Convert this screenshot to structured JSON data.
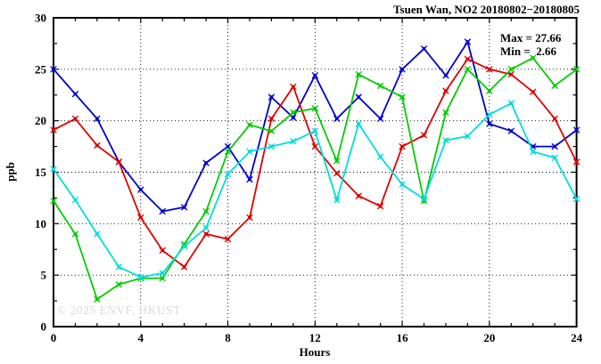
{
  "chart_data": {
    "type": "line",
    "title": "Tsuen Wan, NO2 20180802−20180805",
    "xlabel": "Hours",
    "ylabel": "ppb",
    "xlim": [
      0,
      24
    ],
    "ylim": [
      0,
      30
    ],
    "x_ticks": [
      0,
      4,
      8,
      12,
      16,
      20,
      24
    ],
    "y_ticks": [
      0,
      5,
      10,
      15,
      20,
      25,
      30
    ],
    "grid": true,
    "legend": "none",
    "x": [
      0,
      1,
      2,
      3,
      4,
      5,
      6,
      7,
      8,
      9,
      10,
      11,
      12,
      13,
      14,
      15,
      16,
      17,
      18,
      19,
      20,
      21,
      22,
      23,
      24
    ],
    "series": [
      {
        "name": "series-blue",
        "color": "#0000cc",
        "values": [
          25.0,
          22.6,
          20.2,
          16.0,
          13.3,
          11.2,
          11.6,
          15.9,
          17.5,
          14.3,
          22.3,
          20.3,
          24.4,
          20.2,
          22.3,
          20.2,
          25.0,
          27.0,
          24.4,
          27.66,
          19.7,
          19.0,
          17.5,
          17.5,
          19.1
        ]
      },
      {
        "name": "series-red",
        "color": "#dd0000",
        "values": [
          19.1,
          20.2,
          17.6,
          16.0,
          10.6,
          7.4,
          5.8,
          9.0,
          8.5,
          10.6,
          20.2,
          23.3,
          17.5,
          14.9,
          12.7,
          11.7,
          17.5,
          18.6,
          22.9,
          26.0,
          25.0,
          24.5,
          22.8,
          20.2,
          16.0
        ]
      },
      {
        "name": "series-green",
        "color": "#00cc00",
        "values": [
          12.2,
          9.0,
          2.66,
          4.1,
          4.7,
          4.7,
          8.0,
          11.2,
          17.0,
          19.6,
          19.0,
          20.8,
          21.2,
          16.1,
          24.5,
          23.4,
          22.3,
          12.2,
          20.8,
          25.0,
          22.9,
          25.0,
          26.1,
          23.4,
          25.0
        ]
      },
      {
        "name": "series-cyan",
        "color": "#00dddd",
        "values": [
          15.3,
          12.3,
          9.0,
          5.8,
          4.8,
          5.2,
          7.8,
          9.6,
          14.8,
          17.0,
          17.5,
          18.0,
          19.0,
          12.3,
          19.7,
          16.5,
          13.8,
          12.4,
          18.1,
          18.5,
          20.6,
          21.7,
          17.0,
          16.4,
          12.4
        ]
      }
    ],
    "annotations": {
      "max_label": "Max = 27.66",
      "min_label": "Min =  2.66"
    },
    "watermark": "© 2025 ENVF, HKUST"
  }
}
